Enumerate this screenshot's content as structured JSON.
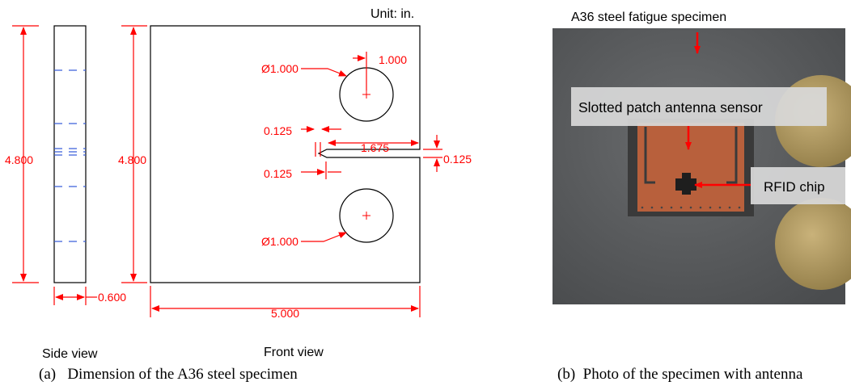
{
  "drawing": {
    "unit_note": "Unit: in.",
    "side_view": {
      "height_label": "4.800",
      "width_label": "0.600",
      "view_label": "Side view"
    },
    "front_view": {
      "height_label": "4.800",
      "width_label": "5.000",
      "hole_top_diameter": "Ø1.000",
      "hole_bottom_diameter": "Ø1.000",
      "hole_offset": "1.000",
      "slot_top_width": "0.125",
      "slot_length": "1.675",
      "slot_gap": "0.125",
      "slot_bottom_width": "0.125",
      "view_label": "Front view"
    },
    "dimension_color": "#ff0000",
    "outline_color": "#000000",
    "hidden_line_color": "#3a5fd9"
  },
  "photo": {
    "title": "A36 steel fatigue specimen",
    "sensor_label": "Slotted patch antenna  sensor",
    "chip_label": "RFID chip",
    "plate_color": "#5a5c5e",
    "antenna_color": "#b8603c",
    "hole_color": "#b39a5e"
  },
  "captions": {
    "left": "(a)   Dimension of the A36 steel specimen",
    "right": "(b)  Photo of the specimen with antenna"
  }
}
